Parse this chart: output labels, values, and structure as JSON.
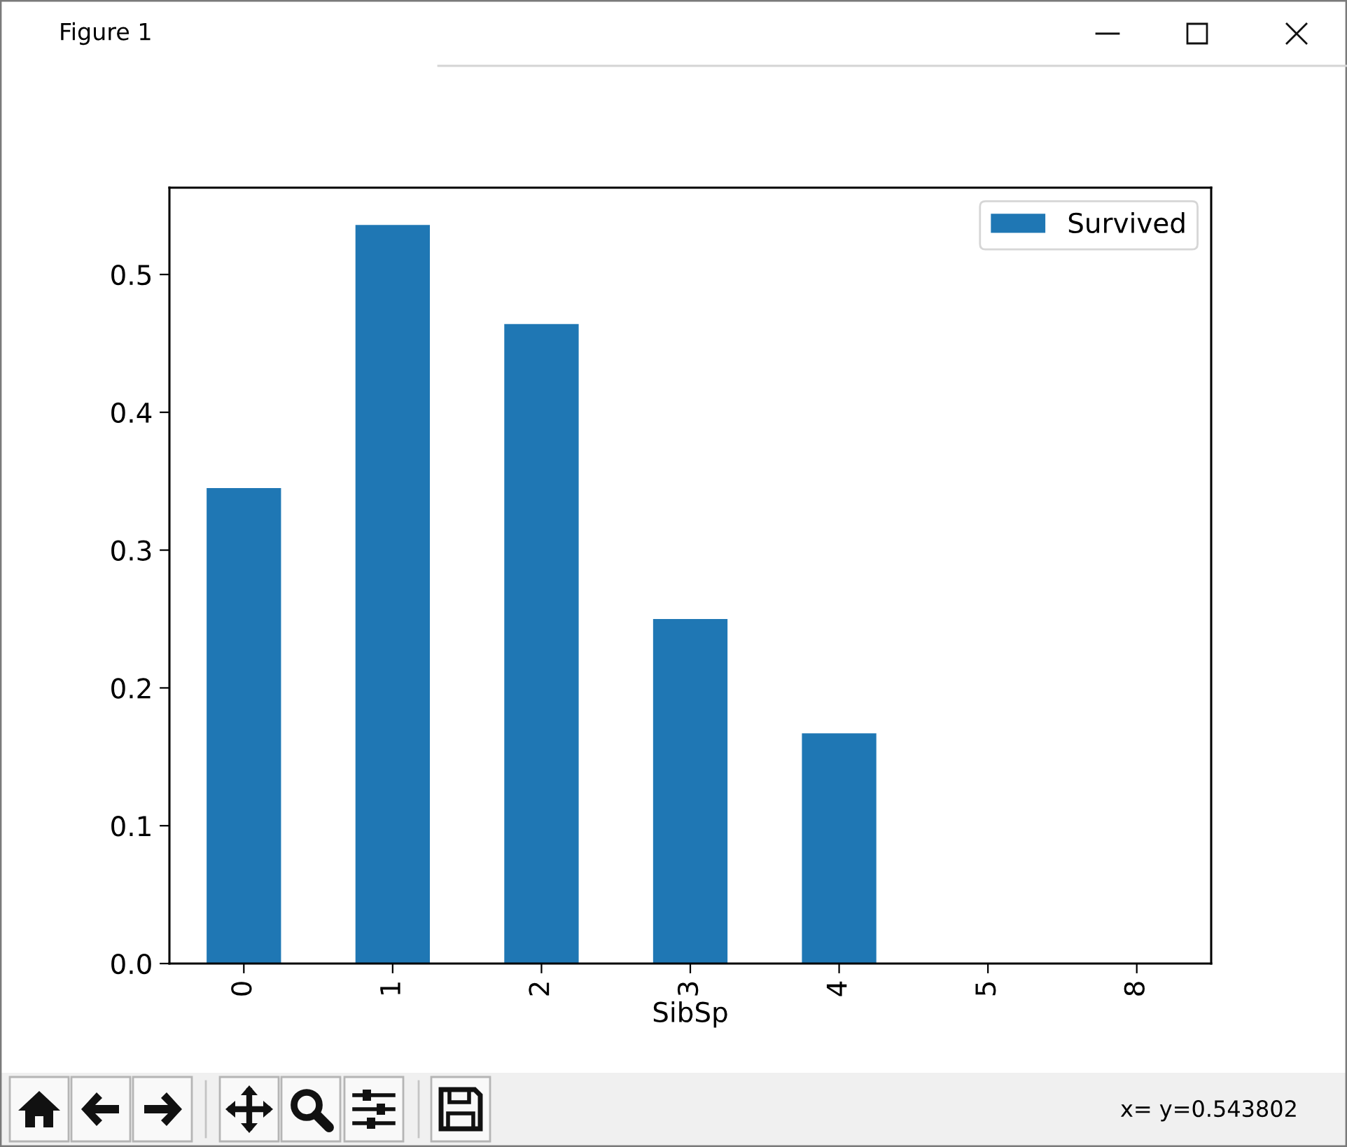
{
  "chart_data": {
    "type": "bar",
    "categories": [
      "0",
      "1",
      "2",
      "3",
      "4",
      "5",
      "8"
    ],
    "series": [
      {
        "name": "Survived",
        "color": "#1f77b4",
        "values": [
          0.345,
          0.536,
          0.464,
          0.25,
          0.167,
          0,
          0
        ]
      }
    ],
    "xlabel": "SibSp",
    "ylim": [
      0,
      0.563
    ],
    "yticks": [
      {
        "value": 0,
        "label": "0.0"
      },
      0.1,
      0.2,
      0.3,
      0.4,
      0.5
    ],
    "legend": "top right",
    "annotations": [
      "Figure 1",
      "x= y=0.543802"
    ]
  }
}
